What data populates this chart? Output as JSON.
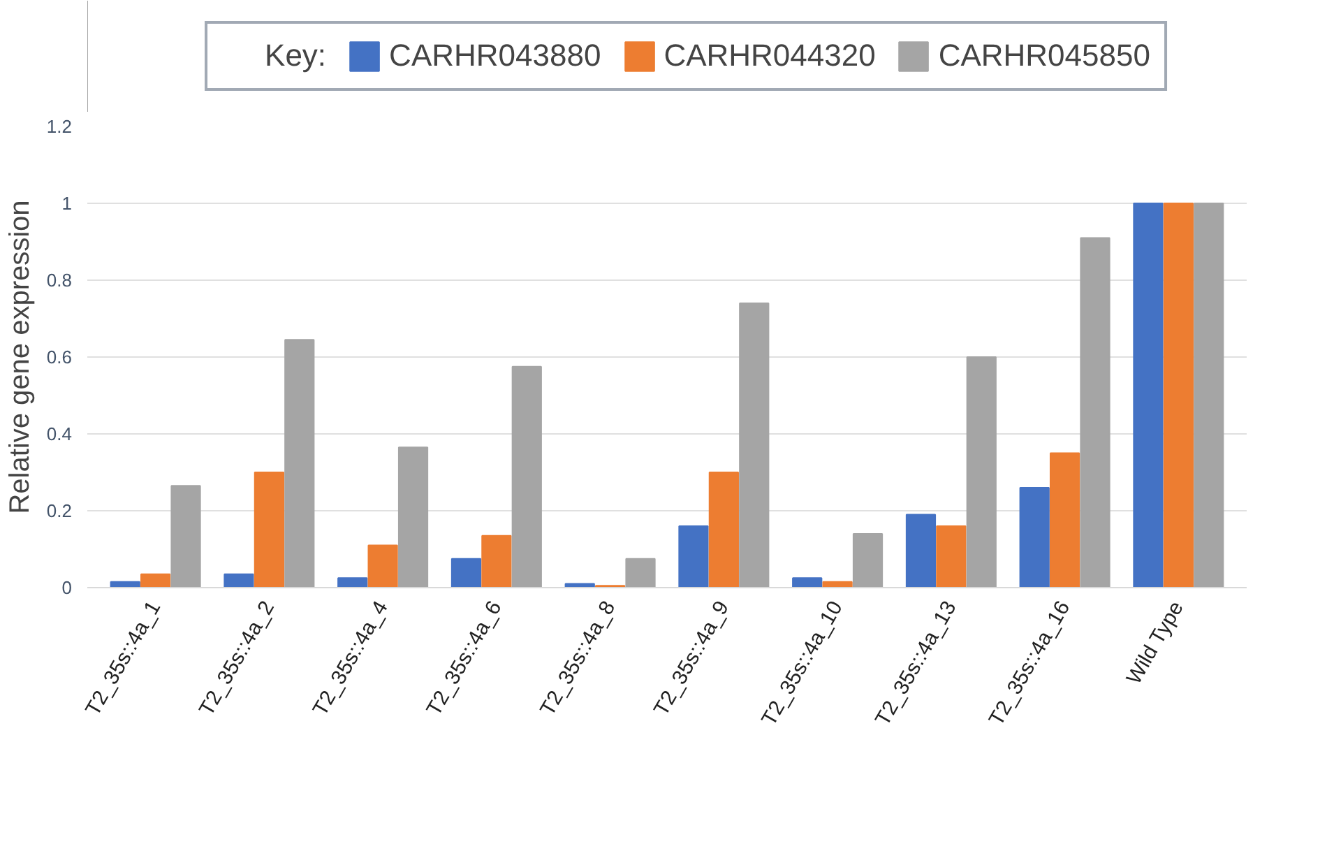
{
  "chart_data": {
    "type": "bar",
    "ylabel": "Relative gene expression",
    "legend_title": "Key:",
    "categories": [
      "T2_35s::4a_1",
      "T2_35s::4a_2",
      "T2_35s::4a_4",
      "T2_35s::4a_6",
      "T2_35s::4a_8",
      "T2_35s::4a_9",
      "T2_35s::4a_10",
      "T2_35s::4a_13",
      "T2_35s::4a_16",
      "Wild Type"
    ],
    "series": [
      {
        "name": "CARHR043880",
        "color": "#4472c4",
        "values": [
          0.015,
          0.035,
          0.025,
          0.075,
          0.01,
          0.16,
          0.025,
          0.19,
          0.26,
          1
        ]
      },
      {
        "name": "CARHR044320",
        "color": "#ed7d31",
        "values": [
          0.035,
          0.3,
          0.11,
          0.135,
          0.005,
          0.3,
          0.015,
          0.16,
          0.35,
          1
        ]
      },
      {
        "name": "CARHR045850",
        "color": "#a5a5a5",
        "values": [
          0.265,
          0.645,
          0.365,
          0.575,
          0.075,
          0.74,
          0.14,
          0.6,
          0.91,
          1
        ]
      }
    ],
    "ylim": [
      0,
      1.2
    ],
    "yticks": [
      0,
      0.2,
      0.4,
      0.6,
      0.8,
      1,
      1.2
    ],
    "grid": "y",
    "legend": "top"
  }
}
